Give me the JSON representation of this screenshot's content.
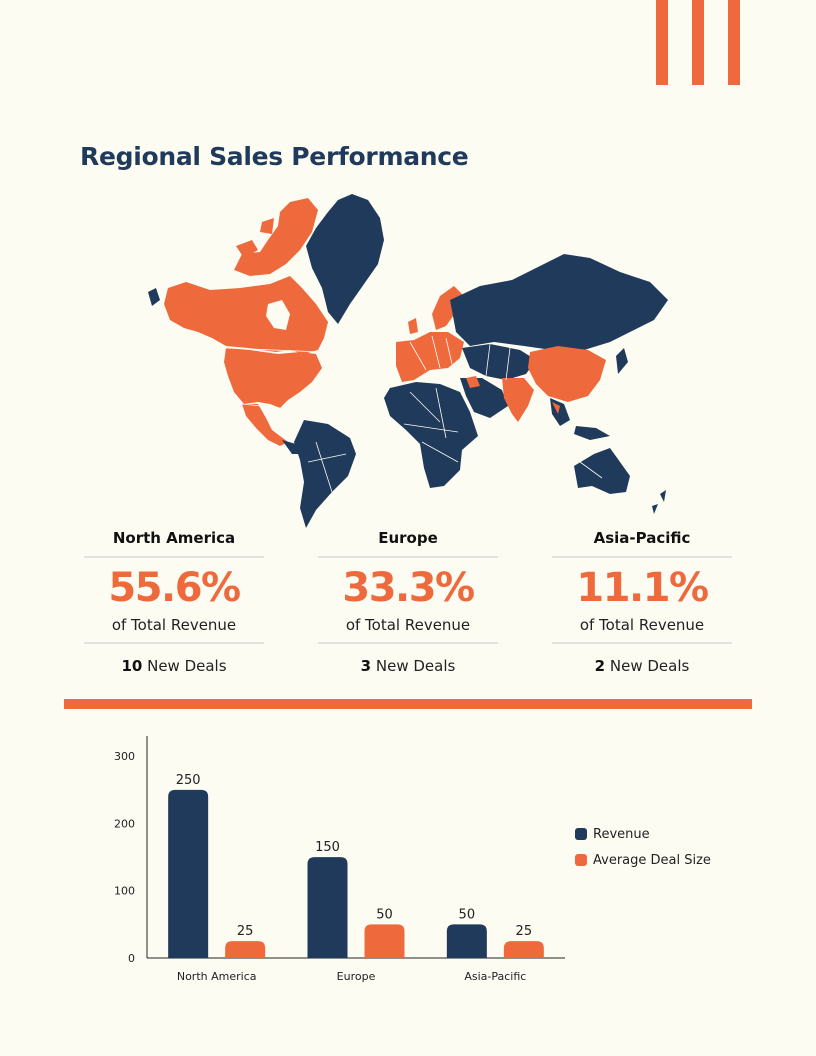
{
  "title": "Regional Sales Performance",
  "colors": {
    "accent": "#ee6a3d",
    "navy": "#1f3a5a",
    "background": "#fdfcf3"
  },
  "map": {
    "highlighted_regions": [
      "North America",
      "Europe",
      "China",
      "India",
      "Australia"
    ],
    "highlight_color": "#ee6a3d",
    "base_color": "#1f3a5a"
  },
  "stats": [
    {
      "region": "North America",
      "percent": "55.6%",
      "subtitle": "of Total Revenue",
      "deals_count": "10",
      "deals_label": "New Deals"
    },
    {
      "region": "Europe",
      "percent": "33.3%",
      "subtitle": "of Total Revenue",
      "deals_count": "3",
      "deals_label": "New Deals"
    },
    {
      "region": "Asia-Pacific",
      "percent": "11.1%",
      "subtitle": "of Total Revenue",
      "deals_count": "2",
      "deals_label": "New Deals"
    }
  ],
  "chart_data": {
    "type": "bar",
    "categories": [
      "North America",
      "Europe",
      "Asia-Pacific"
    ],
    "series": [
      {
        "name": "Revenue",
        "values": [
          250,
          150,
          50
        ],
        "color": "#1f3a5a"
      },
      {
        "name": "Average Deal Size",
        "values": [
          25,
          50,
          25
        ],
        "color": "#ee6a3d"
      }
    ],
    "ylim": [
      0,
      330
    ],
    "yticks": [
      0,
      100,
      200,
      300
    ],
    "title": "",
    "xlabel": "",
    "ylabel": "",
    "legend_position": "right",
    "grid": false
  }
}
